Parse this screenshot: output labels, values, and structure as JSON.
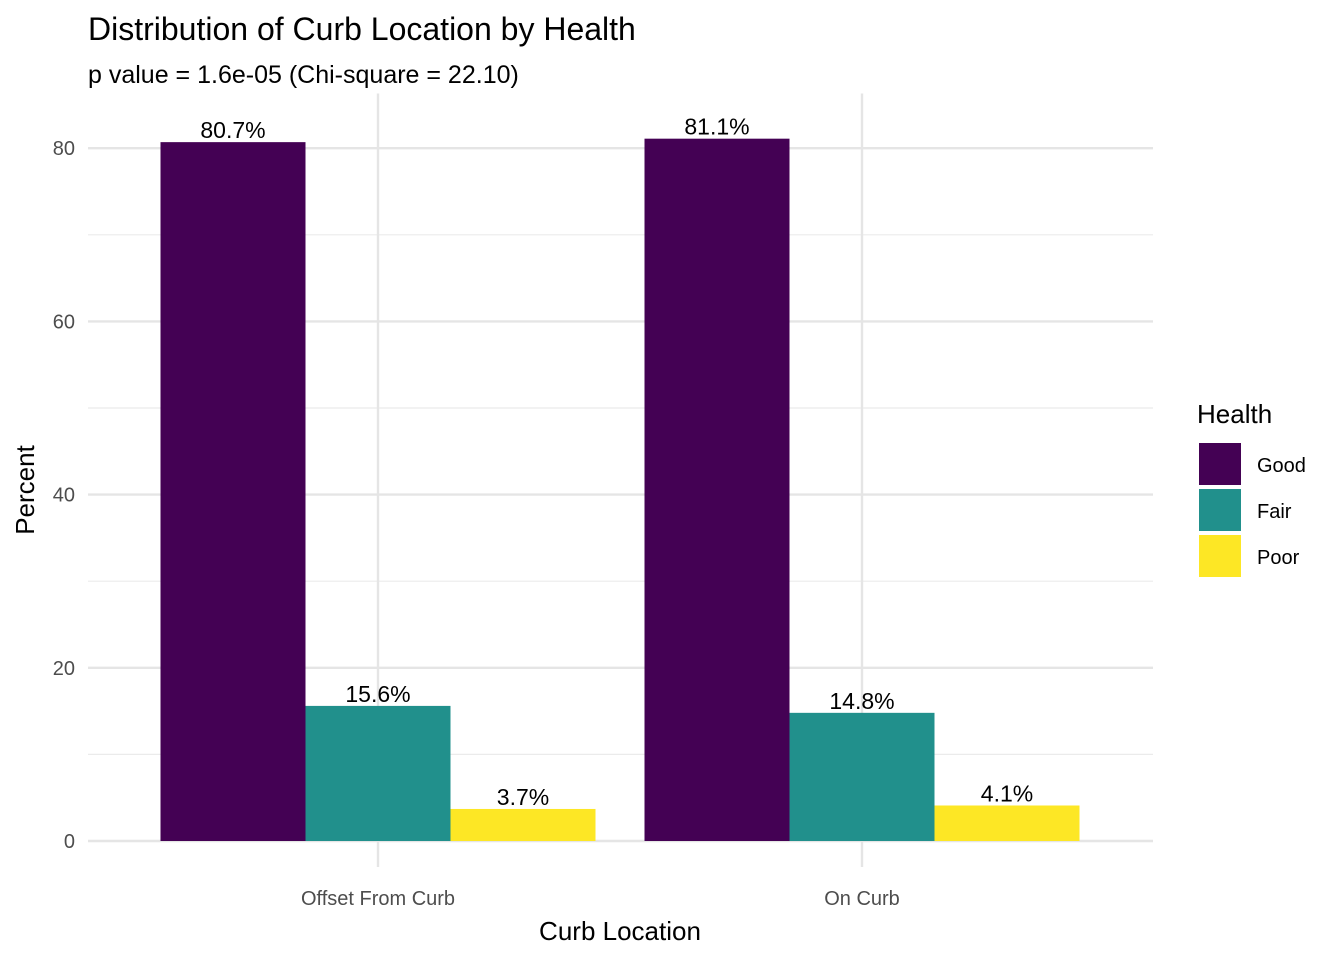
{
  "chart_data": {
    "type": "bar",
    "title": "Distribution of Curb Location by Health",
    "subtitle": "p value = 1.6e-05 (Chi-square = 22.10)",
    "xlabel": "Curb Location",
    "ylabel": "Percent",
    "categories": [
      "Offset From Curb",
      "On Curb"
    ],
    "series": [
      {
        "name": "Good",
        "color": "#440154",
        "values": [
          80.7,
          81.1
        ],
        "labels": [
          "80.7%",
          "81.1%"
        ]
      },
      {
        "name": "Fair",
        "color": "#21908C",
        "values": [
          15.6,
          14.8
        ],
        "labels": [
          "15.6%",
          "14.8%"
        ]
      },
      {
        "name": "Poor",
        "color": "#FDE725",
        "values": [
          3.7,
          4.1
        ],
        "labels": [
          "3.7%",
          "4.1%"
        ]
      }
    ],
    "ylim": [
      0,
      84
    ],
    "y_ticks": [
      0,
      20,
      40,
      60,
      80
    ],
    "grid": true,
    "legend": {
      "title": "Health",
      "placement": "right"
    }
  }
}
